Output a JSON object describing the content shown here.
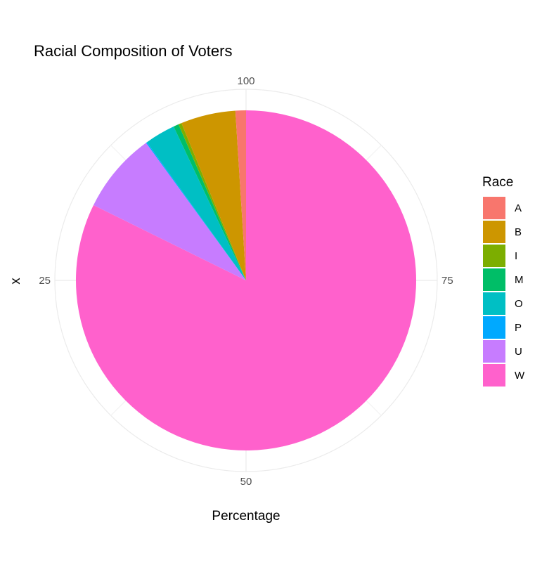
{
  "chart_data": {
    "type": "pie",
    "title": "Racial Composition of Voters",
    "xlabel": "Percentage",
    "ylabel": "x",
    "theta_ticks": [
      {
        "value": 100,
        "label": "100"
      },
      {
        "value": 25,
        "label": "25"
      },
      {
        "value": 50,
        "label": "50"
      },
      {
        "value": 75,
        "label": "75"
      }
    ],
    "legend": {
      "title": "Race",
      "position": "right"
    },
    "grid": true,
    "slices": [
      {
        "name": "A",
        "value": 1.0,
        "color": "#F8766D"
      },
      {
        "name": "B",
        "value": 5.2,
        "color": "#CD9600"
      },
      {
        "name": "I",
        "value": 0.3,
        "color": "#7CAE00"
      },
      {
        "name": "M",
        "value": 0.5,
        "color": "#00BE67"
      },
      {
        "name": "O",
        "value": 2.9,
        "color": "#00BFC4"
      },
      {
        "name": "P",
        "value": 0.1,
        "color": "#00A9FF"
      },
      {
        "name": "U",
        "value": 7.7,
        "color": "#C77CFF"
      },
      {
        "name": "W",
        "value": 82.3,
        "color": "#FF61CC"
      }
    ]
  }
}
